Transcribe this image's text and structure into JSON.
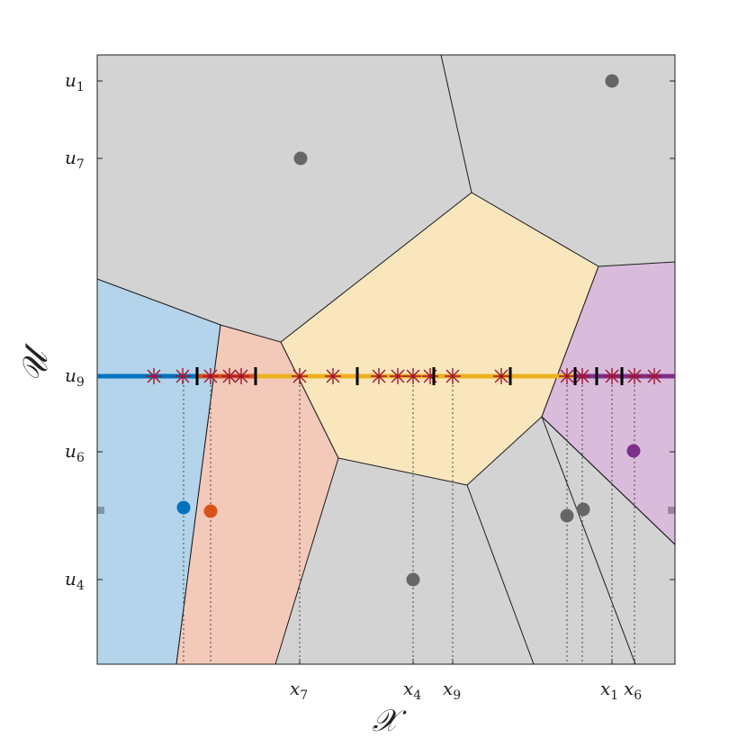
{
  "labels": {
    "x_axis": "𝒳",
    "y_axis": "𝒰",
    "y_ticks": [
      {
        "base": "u",
        "sub": "1"
      },
      {
        "base": "u",
        "sub": "7"
      },
      {
        "base": "u",
        "sub": "9"
      },
      {
        "base": "u",
        "sub": "6"
      },
      {
        "base": "u",
        "sub": "4"
      }
    ],
    "x_ticks": [
      {
        "base": "x",
        "sub": "7"
      },
      {
        "base": "x",
        "sub": "4"
      },
      {
        "base": "x",
        "sub": "9"
      },
      {
        "base": "x",
        "sub": "1"
      },
      {
        "base": "x",
        "sub": "6"
      }
    ]
  },
  "colors": {
    "cell_gray": "#d3d3d3",
    "cell_blue": "#b3d4ea",
    "cell_salmon": "#f3c9b9",
    "cell_yellow": "#fae6bd",
    "cell_purple": "#d9bcdc",
    "seg_blue": "#0072bd",
    "seg_orange": "#edb120",
    "seg_purple": "#7e2f8e",
    "point_blue": "#0072bd",
    "point_orange": "#d95319",
    "point_purple": "#7e2f8e",
    "point_gray": "#666666",
    "star": "#a2142f",
    "edge": "#1a1a1a"
  },
  "icons": {
    "sample_marker": "asterisk-star",
    "boundary_marker": "vertical-bar"
  }
}
